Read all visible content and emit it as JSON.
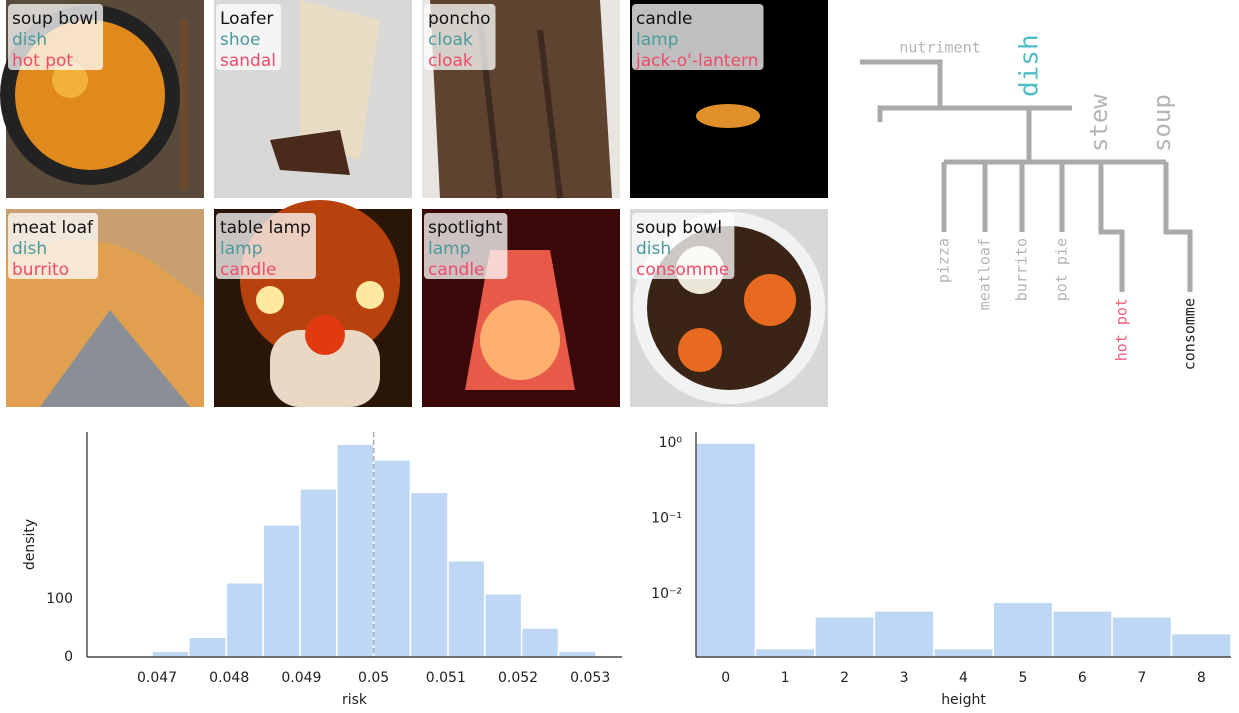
{
  "grid": {
    "label_colors": [
      "#111111",
      "#4b9a9e",
      "#ef4c68"
    ],
    "tiles": [
      [
        "soup bowl",
        "dish",
        "hot pot"
      ],
      [
        "Loafer",
        "shoe",
        "sandal"
      ],
      [
        "poncho",
        "cloak",
        "cloak"
      ],
      [
        "candle",
        "lamp",
        "jack-o'-lantern"
      ],
      [
        "meat loaf",
        "dish",
        "burrito"
      ],
      [
        "table lamp",
        "lamp",
        "candle"
      ],
      [
        "spotlight",
        "lamp",
        "candle"
      ],
      [
        "soup bowl",
        "dish",
        "consomme"
      ]
    ]
  },
  "tree": {
    "nodes": [
      {
        "label": "nutriment",
        "color": "#b5b5b5"
      },
      {
        "label": "dish",
        "color": "#4fbfc5"
      },
      {
        "label": "stew",
        "color": "#b5b5b5"
      },
      {
        "label": "soup",
        "color": "#b5b5b5"
      },
      {
        "label": "pizza",
        "color": "#b5b5b5"
      },
      {
        "label": "meatloaf",
        "color": "#b5b5b5"
      },
      {
        "label": "burrito",
        "color": "#b5b5b5"
      },
      {
        "label": "pot pie",
        "color": "#b5b5b5"
      },
      {
        "label": "hot pot",
        "color": "#ef5f78"
      },
      {
        "label": "consomme",
        "color": "#222222"
      }
    ]
  },
  "chart_data": [
    {
      "type": "histogram",
      "xlabel": "risk",
      "ylabel": "density",
      "color": "#bdd7f5",
      "bins": [
        0.04642,
        0.04693,
        0.04744,
        0.04796,
        0.04847,
        0.04898,
        0.04949,
        0.05,
        0.05051,
        0.05103,
        0.05154,
        0.05205,
        0.05256,
        0.05308
      ],
      "values": [
        1,
        10,
        34,
        128,
        228,
        290,
        367,
        340,
        284,
        166,
        109,
        50,
        10
      ],
      "vline": 0.05,
      "xlim": [
        0.04603,
        0.05344
      ],
      "ylim": [
        0,
        388
      ],
      "xticks": [
        0.047,
        0.048,
        0.049,
        0.05,
        0.051,
        0.052,
        0.053
      ],
      "yticks": [
        0,
        100
      ]
    },
    {
      "type": "bar",
      "xlabel": "height",
      "color": "#bdd7f5",
      "log_y": true,
      "x": [
        0,
        1,
        2,
        3,
        4,
        5,
        6,
        7,
        8
      ],
      "values": [
        1.0,
        0.0019,
        0.005,
        0.006,
        0.0019,
        0.0078,
        0.006,
        0.005,
        0.003
      ],
      "xlim": [
        -0.5,
        8.5
      ],
      "ylim": [
        0.00147,
        1.4
      ],
      "xticks": [
        0,
        1,
        2,
        3,
        4,
        5,
        6,
        7,
        8
      ],
      "yticks": [
        {
          "value": 1,
          "label": "10⁰"
        },
        {
          "value": 0.1,
          "label": "10⁻¹"
        },
        {
          "value": 0.01,
          "label": "10⁻²"
        }
      ]
    }
  ]
}
